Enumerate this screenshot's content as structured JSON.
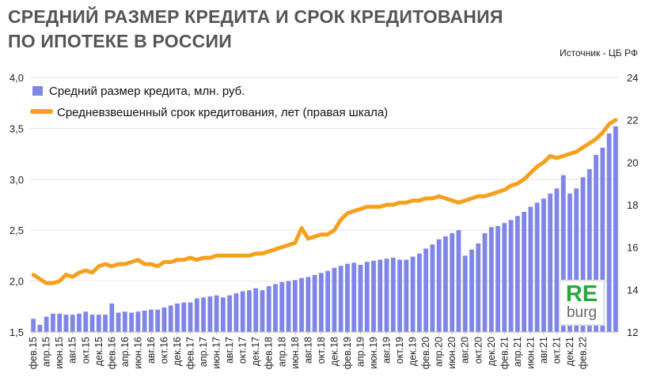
{
  "chart_data": {
    "type": "bar",
    "title_lines": [
      "СРЕДНИЙ РАЗМЕР КРЕДИТА И СРОК КРЕДИТОВАНИЯ",
      "ПО ИПОТЕКЕ В РОССИИ"
    ],
    "source": "Источник  - ЦБ РФ",
    "left_axis": {
      "ylim": [
        1.5,
        4.0
      ],
      "ticks": [
        "1,5",
        "2,0",
        "2,5",
        "3,0",
        "3,5",
        "4,0"
      ],
      "tick_values": [
        1.5,
        2.0,
        2.5,
        3.0,
        3.5,
        4.0
      ]
    },
    "right_axis": {
      "ylim": [
        12,
        24
      ],
      "ticks": [
        "12",
        "14",
        "16",
        "18",
        "20",
        "22",
        "24"
      ],
      "tick_values": [
        12,
        14,
        16,
        18,
        20,
        22,
        24
      ]
    },
    "x_tick_labels": [
      "фев.15",
      "апр.15",
      "июн.15",
      "авг.15",
      "окт.15",
      "дек.15",
      "фев.16",
      "апр.16",
      "июн.16",
      "авг.16",
      "окт.16",
      "дек.16",
      "фев.17",
      "апр.17",
      "июн.17",
      "авг.17",
      "окт.17",
      "дек.17",
      "фев.18",
      "апр.18",
      "июн.18",
      "авг.18",
      "окт.18",
      "дек.18",
      "фев.19",
      "апр.19",
      "июн.19",
      "авг.19",
      "окт.19",
      "дек.19",
      "фев.20",
      "апр.20",
      "июн.20",
      "авг.20",
      "окт.20",
      "дек.20",
      "фев.21",
      "апр.21",
      "июн.21",
      "авг.21",
      "окт.21",
      "дек.21",
      "фев.22"
    ],
    "series": [
      {
        "name": "Средний размер кредита, млн. руб.",
        "type": "bar",
        "axis": "left",
        "color": "#7f86e6",
        "values": [
          1.63,
          1.57,
          1.65,
          1.68,
          1.68,
          1.67,
          1.67,
          1.68,
          1.7,
          1.67,
          1.67,
          1.67,
          1.78,
          1.69,
          1.7,
          1.69,
          1.7,
          1.71,
          1.72,
          1.72,
          1.74,
          1.76,
          1.78,
          1.79,
          1.79,
          1.83,
          1.84,
          1.85,
          1.86,
          1.84,
          1.86,
          1.88,
          1.9,
          1.91,
          1.93,
          1.91,
          1.95,
          1.97,
          1.99,
          2.0,
          2.01,
          2.03,
          2.04,
          2.06,
          2.08,
          2.1,
          2.13,
          2.15,
          2.17,
          2.18,
          2.16,
          2.19,
          2.2,
          2.21,
          2.22,
          2.23,
          2.21,
          2.21,
          2.24,
          2.27,
          2.32,
          2.36,
          2.41,
          2.44,
          2.47,
          2.5,
          2.25,
          2.31,
          2.37,
          2.47,
          2.53,
          2.54,
          2.57,
          2.6,
          2.64,
          2.68,
          2.73,
          2.77,
          2.81,
          2.86,
          2.91,
          3.04,
          2.86,
          2.91,
          3.02,
          3.1,
          3.24,
          3.31,
          3.45,
          3.52
        ]
      },
      {
        "name": "Средневзвешенный срок кредитования, лет (правая шкала)",
        "type": "line",
        "axis": "right",
        "color": "#f5a01f",
        "values": [
          14.7,
          14.5,
          14.3,
          14.3,
          14.4,
          14.7,
          14.6,
          14.8,
          14.9,
          14.8,
          15.1,
          15.2,
          15.1,
          15.2,
          15.2,
          15.3,
          15.4,
          15.2,
          15.2,
          15.1,
          15.3,
          15.3,
          15.4,
          15.4,
          15.5,
          15.4,
          15.5,
          15.5,
          15.6,
          15.6,
          15.6,
          15.6,
          15.6,
          15.6,
          15.7,
          15.7,
          15.8,
          15.9,
          16.0,
          16.1,
          16.2,
          16.9,
          16.4,
          16.5,
          16.6,
          16.6,
          16.8,
          17.3,
          17.6,
          17.7,
          17.8,
          17.9,
          17.9,
          17.9,
          18.0,
          18.0,
          18.1,
          18.1,
          18.2,
          18.2,
          18.3,
          18.3,
          18.4,
          18.3,
          18.2,
          18.1,
          18.2,
          18.3,
          18.4,
          18.4,
          18.5,
          18.6,
          18.7,
          18.9,
          19.0,
          19.2,
          19.5,
          19.8,
          20.0,
          20.3,
          20.2,
          20.3,
          20.4,
          20.5,
          20.7,
          20.9,
          21.1,
          21.4,
          21.8,
          22.0
        ]
      }
    ],
    "legend_position": "top-left"
  },
  "logo": {
    "re": "RE",
    "burg": "burg"
  }
}
